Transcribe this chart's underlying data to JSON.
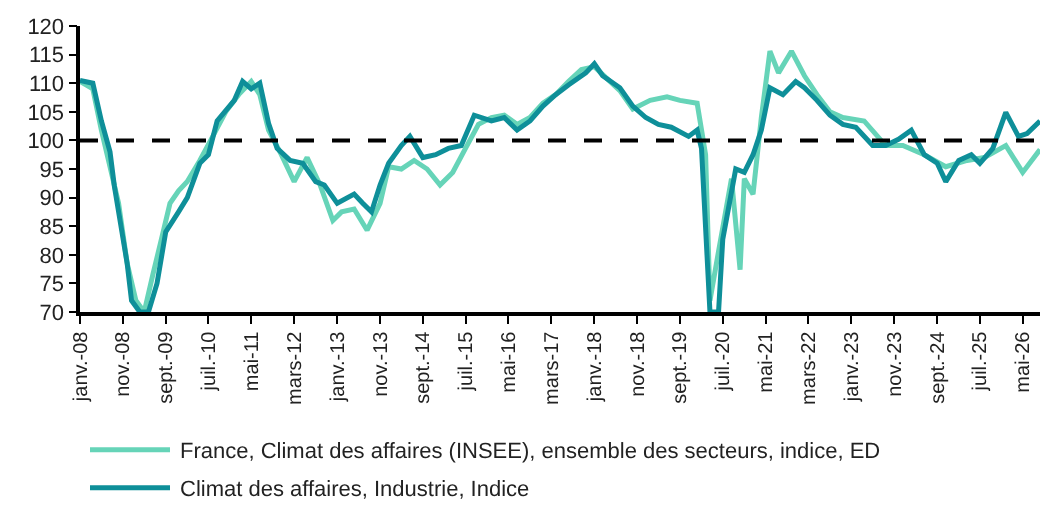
{
  "chart_data": {
    "type": "line",
    "ylim": [
      70,
      120
    ],
    "yticks": [
      70,
      75,
      80,
      85,
      90,
      95,
      100,
      105,
      110,
      115,
      120
    ],
    "xlim": [
      "2008-01",
      "2026-09"
    ],
    "xticks": [
      {
        "value": "2008-01",
        "label": "janv.-08"
      },
      {
        "value": "2008-11",
        "label": "nov.-08"
      },
      {
        "value": "2009-09",
        "label": "sept.-09"
      },
      {
        "value": "2010-07",
        "label": "juil.-10"
      },
      {
        "value": "2011-05",
        "label": "mai-11"
      },
      {
        "value": "2012-03",
        "label": "mars-12"
      },
      {
        "value": "2013-01",
        "label": "janv.-13"
      },
      {
        "value": "2013-11",
        "label": "nov.-13"
      },
      {
        "value": "2014-09",
        "label": "sept.-14"
      },
      {
        "value": "2015-07",
        "label": "juil.-15"
      },
      {
        "value": "2016-05",
        "label": "mai-16"
      },
      {
        "value": "2017-03",
        "label": "mars-17"
      },
      {
        "value": "2018-01",
        "label": "janv.-18"
      },
      {
        "value": "2018-11",
        "label": "nov.-18"
      },
      {
        "value": "2019-09",
        "label": "sept.-19"
      },
      {
        "value": "2020-07",
        "label": "juil.-20"
      },
      {
        "value": "2021-05",
        "label": "mai-21"
      },
      {
        "value": "2022-03",
        "label": "mars-22"
      },
      {
        "value": "2023-01",
        "label": "janv.-23"
      },
      {
        "value": "2023-11",
        "label": "nov.-23"
      },
      {
        "value": "2024-09",
        "label": "sept.-24"
      },
      {
        "value": "2025-07",
        "label": "juil.-25"
      },
      {
        "value": "2026-05",
        "label": "mai-26"
      }
    ],
    "legend": "bottom",
    "marker": "none",
    "line_style": "solid",
    "ref_lines": [
      {
        "axis": "y",
        "value": 100,
        "color": "#000000",
        "line_style": "dashed"
      }
    ],
    "series": [
      {
        "name": "France, Climat des affaires (INSEE), ensemble des secteurs, indice, ED",
        "color": "#66d4b8",
        "x": [
          "2008-01",
          "2008-04",
          "2008-06",
          "2008-08",
          "2008-10",
          "2008-12",
          "2009-02",
          "2009-04",
          "2009-06",
          "2009-08",
          "2009-10",
          "2009-12",
          "2010-02",
          "2010-05",
          "2010-08",
          "2010-11",
          "2011-02",
          "2011-05",
          "2011-07",
          "2011-09",
          "2011-12",
          "2012-03",
          "2012-06",
          "2012-09",
          "2012-12",
          "2013-02",
          "2013-05",
          "2013-08",
          "2013-11",
          "2014-01",
          "2014-04",
          "2014-07",
          "2014-10",
          "2015-01",
          "2015-04",
          "2015-07",
          "2015-10",
          "2016-01",
          "2016-04",
          "2016-07",
          "2016-10",
          "2017-01",
          "2017-04",
          "2017-07",
          "2017-10",
          "2018-01",
          "2018-04",
          "2018-07",
          "2018-10",
          "2019-02",
          "2019-06",
          "2019-09",
          "2020-01",
          "2020-03",
          "2020-04",
          "2020-06",
          "2020-09",
          "2020-11",
          "2020-12",
          "2021-02",
          "2021-04",
          "2021-06",
          "2021-08",
          "2021-11",
          "2022-02",
          "2022-05",
          "2022-08",
          "2022-11",
          "2023-04",
          "2023-09",
          "2024-01",
          "2024-06",
          "2024-11",
          "2025-04",
          "2025-08",
          "2026-01",
          "2026-05",
          "2026-09"
        ],
        "values": [
          110.3,
          109,
          101.8,
          95.4,
          89,
          78.5,
          72,
          70,
          76.5,
          82.7,
          89,
          91.2,
          92.8,
          96.5,
          100.7,
          105,
          108,
          110.3,
          108,
          101.8,
          97.5,
          92.8,
          97,
          92.2,
          86,
          87.5,
          88,
          84.3,
          89,
          95.4,
          95,
          96.5,
          95,
          92.2,
          94.4,
          98.6,
          102.8,
          104,
          104.4,
          102.8,
          104,
          106.5,
          108,
          110.3,
          112.4,
          112.9,
          110.8,
          108.7,
          105.5,
          107,
          107.6,
          107,
          106.5,
          97.5,
          72,
          80.6,
          93.3,
          77.4,
          93.3,
          90.6,
          104,
          115.6,
          111.8,
          115.6,
          111.3,
          108,
          105,
          104,
          103.4,
          99.1,
          99.1,
          97.5,
          95.4,
          96.5,
          97,
          99.1,
          94.4,
          98.4
        ]
      },
      {
        "name": "Climat des affaires, Industrie, Indice",
        "color": "#0e8f99",
        "x": [
          "2008-01",
          "2008-04",
          "2008-06",
          "2008-08",
          "2008-09",
          "2008-12",
          "2009-01",
          "2009-03",
          "2009-05",
          "2009-07",
          "2009-09",
          "2009-12",
          "2010-02",
          "2010-05",
          "2010-07",
          "2010-09",
          "2011-01",
          "2011-03",
          "2011-05",
          "2011-07",
          "2011-09",
          "2011-11",
          "2012-02",
          "2012-05",
          "2012-08",
          "2012-10",
          "2013-01",
          "2013-05",
          "2013-07",
          "2013-09",
          "2013-11",
          "2014-01",
          "2014-04",
          "2014-06",
          "2014-09",
          "2014-12",
          "2015-03",
          "2015-06",
          "2015-09",
          "2016-01",
          "2016-04",
          "2016-07",
          "2016-10",
          "2017-01",
          "2017-04",
          "2017-07",
          "2017-11",
          "2018-01",
          "2018-03",
          "2018-07",
          "2018-10",
          "2019-01",
          "2019-04",
          "2019-07",
          "2019-11",
          "2020-01",
          "2020-02",
          "2020-04",
          "2020-06",
          "2020-07",
          "2020-10",
          "2020-12",
          "2021-02",
          "2021-04",
          "2021-06",
          "2021-09",
          "2021-12",
          "2022-02",
          "2022-05",
          "2022-08",
          "2022-11",
          "2023-02",
          "2023-06",
          "2023-09",
          "2023-12",
          "2024-03",
          "2024-06",
          "2024-09",
          "2024-11",
          "2025-02",
          "2025-05",
          "2025-07",
          "2025-10",
          "2026-01",
          "2026-04",
          "2026-06",
          "2026-09"
        ],
        "values": [
          110.5,
          110,
          103.4,
          98,
          92,
          78.5,
          72,
          70,
          70,
          75,
          84,
          87.5,
          90,
          96,
          97.5,
          103.4,
          107,
          110.3,
          109,
          110,
          103,
          98.6,
          96.5,
          96,
          92.8,
          92.2,
          89,
          90.6,
          89,
          87.5,
          92.2,
          96,
          99.1,
          100.7,
          97,
          97.5,
          98.6,
          99.1,
          104.4,
          103.4,
          104,
          101.8,
          103.4,
          106,
          108,
          109.7,
          111.8,
          113.4,
          111.3,
          109.2,
          106,
          104,
          102.8,
          102.3,
          100.7,
          101.8,
          98.6,
          70,
          70,
          82.7,
          95,
          94.4,
          97.5,
          101.8,
          109.2,
          108,
          110.3,
          109.2,
          107,
          104.4,
          102.8,
          102.3,
          99.1,
          99.1,
          100.2,
          101.8,
          97.5,
          96,
          92.8,
          96.5,
          97.5,
          96,
          98.6,
          104.9,
          100.7,
          101.2,
          103.4
        ]
      }
    ]
  }
}
